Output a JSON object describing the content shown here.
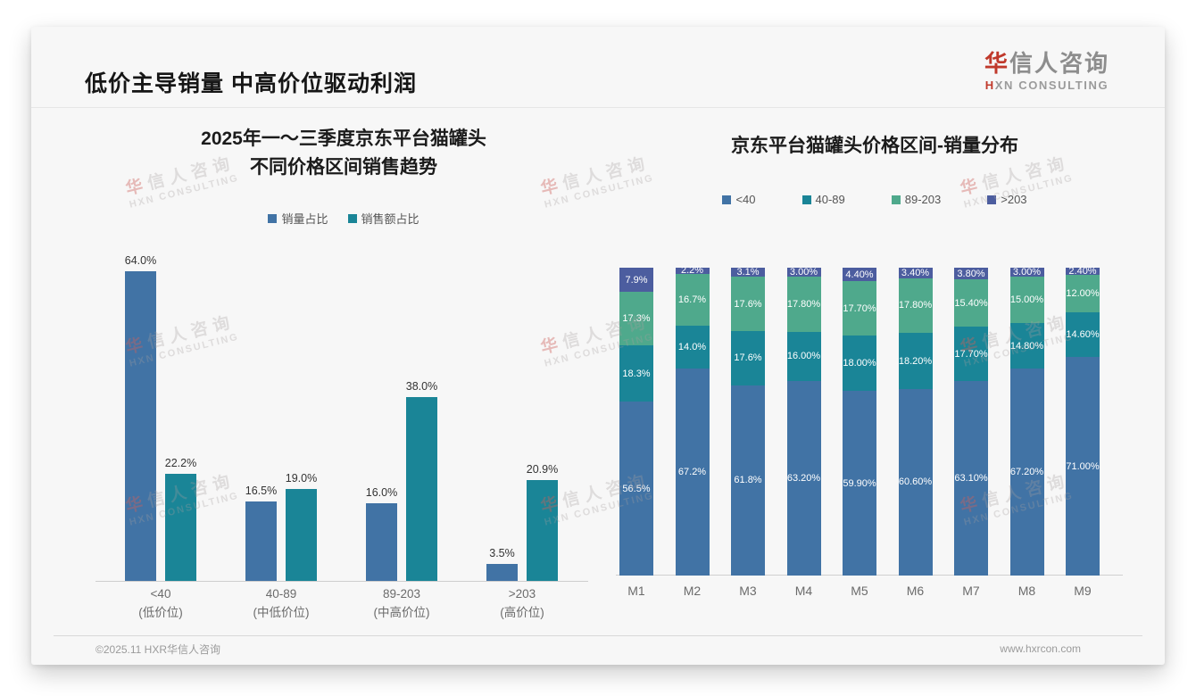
{
  "header": {
    "title": "低价主导销量 中高价位驱动利润"
  },
  "logo": {
    "cn_accent": "华",
    "cn_rest": "信人咨询",
    "en_accent": "H",
    "en_rest": "XN CONSULTING"
  },
  "watermark": {
    "cn_accent": "华",
    "cn_rest": "信人咨询",
    "en": "HXN CONSULTING"
  },
  "footer": {
    "left": "©2025.11 HXR华信人咨询",
    "right": "www.hxrcon.com"
  },
  "colors": {
    "blue": "#4173a5",
    "teal": "#1a8597",
    "green": "#4fa98c",
    "indigo": "#4c5d9f",
    "axis": "#cfcfcf"
  },
  "chart_data": [
    {
      "type": "bar",
      "title_lines": [
        "2025年一～三季度京东平台猫罐头",
        "不同价格区间销售趋势"
      ],
      "legend_position": "top",
      "grid": false,
      "ylabel": "",
      "ylim": [
        0,
        70
      ],
      "categories": [
        {
          "range": "<40",
          "tier": "(低价位)"
        },
        {
          "range": "40-89",
          "tier": "(中低价位)"
        },
        {
          "range": "89-203",
          "tier": "(中高价位)"
        },
        {
          "range": ">203",
          "tier": "(高价位)"
        }
      ],
      "series": [
        {
          "name": "销量占比",
          "color": "blue",
          "values": [
            64.0,
            16.5,
            16.0,
            3.5
          ],
          "labels": [
            "64.0%",
            "16.5%",
            "16.0%",
            "3.5%"
          ]
        },
        {
          "name": "销售额占比",
          "color": "teal",
          "values": [
            22.2,
            19.0,
            38.0,
            20.9
          ],
          "labels": [
            "22.2%",
            "19.0%",
            "38.0%",
            "20.9%"
          ]
        }
      ]
    },
    {
      "type": "stacked-bar",
      "title": "京东平台猫罐头价格区间-销量分布",
      "legend_position": "top",
      "grid": false,
      "ylim": [
        0,
        100
      ],
      "categories": [
        "M1",
        "M2",
        "M3",
        "M4",
        "M5",
        "M6",
        "M7",
        "M8",
        "M9"
      ],
      "series": [
        {
          "name": "<40",
          "color": "blue",
          "values": [
            56.5,
            67.2,
            61.8,
            63.2,
            59.9,
            60.6,
            63.1,
            67.2,
            71.0
          ],
          "labels": [
            "56.5%",
            "67.2%",
            "61.8%",
            "63.20%",
            "59.90%",
            "60.60%",
            "63.10%",
            "67.20%",
            "71.00%"
          ]
        },
        {
          "name": "40-89",
          "color": "teal",
          "values": [
            18.3,
            14.0,
            17.6,
            16.0,
            18.0,
            18.2,
            17.7,
            14.8,
            14.6
          ],
          "labels": [
            "18.3%",
            "14.0%",
            "17.6%",
            "16.00%",
            "18.00%",
            "18.20%",
            "17.70%",
            "14.80%",
            "14.60%"
          ]
        },
        {
          "name": "89-203",
          "color": "green",
          "values": [
            17.3,
            16.7,
            17.6,
            17.8,
            17.7,
            17.8,
            15.4,
            15.0,
            12.0
          ],
          "labels": [
            "17.3%",
            "16.7%",
            "17.6%",
            "17.80%",
            "17.70%",
            "17.80%",
            "15.40%",
            "15.00%",
            "12.00%"
          ]
        },
        {
          "name": ">203",
          "color": "indigo",
          "values": [
            7.9,
            2.2,
            3.1,
            3.0,
            4.4,
            3.4,
            3.8,
            3.0,
            2.4
          ],
          "labels": [
            "7.9%",
            "2.2%",
            "3.1%",
            "3.00%",
            "4.40%",
            "3.40%",
            "3.80%",
            "3.00%",
            "2.40%"
          ]
        }
      ]
    }
  ]
}
